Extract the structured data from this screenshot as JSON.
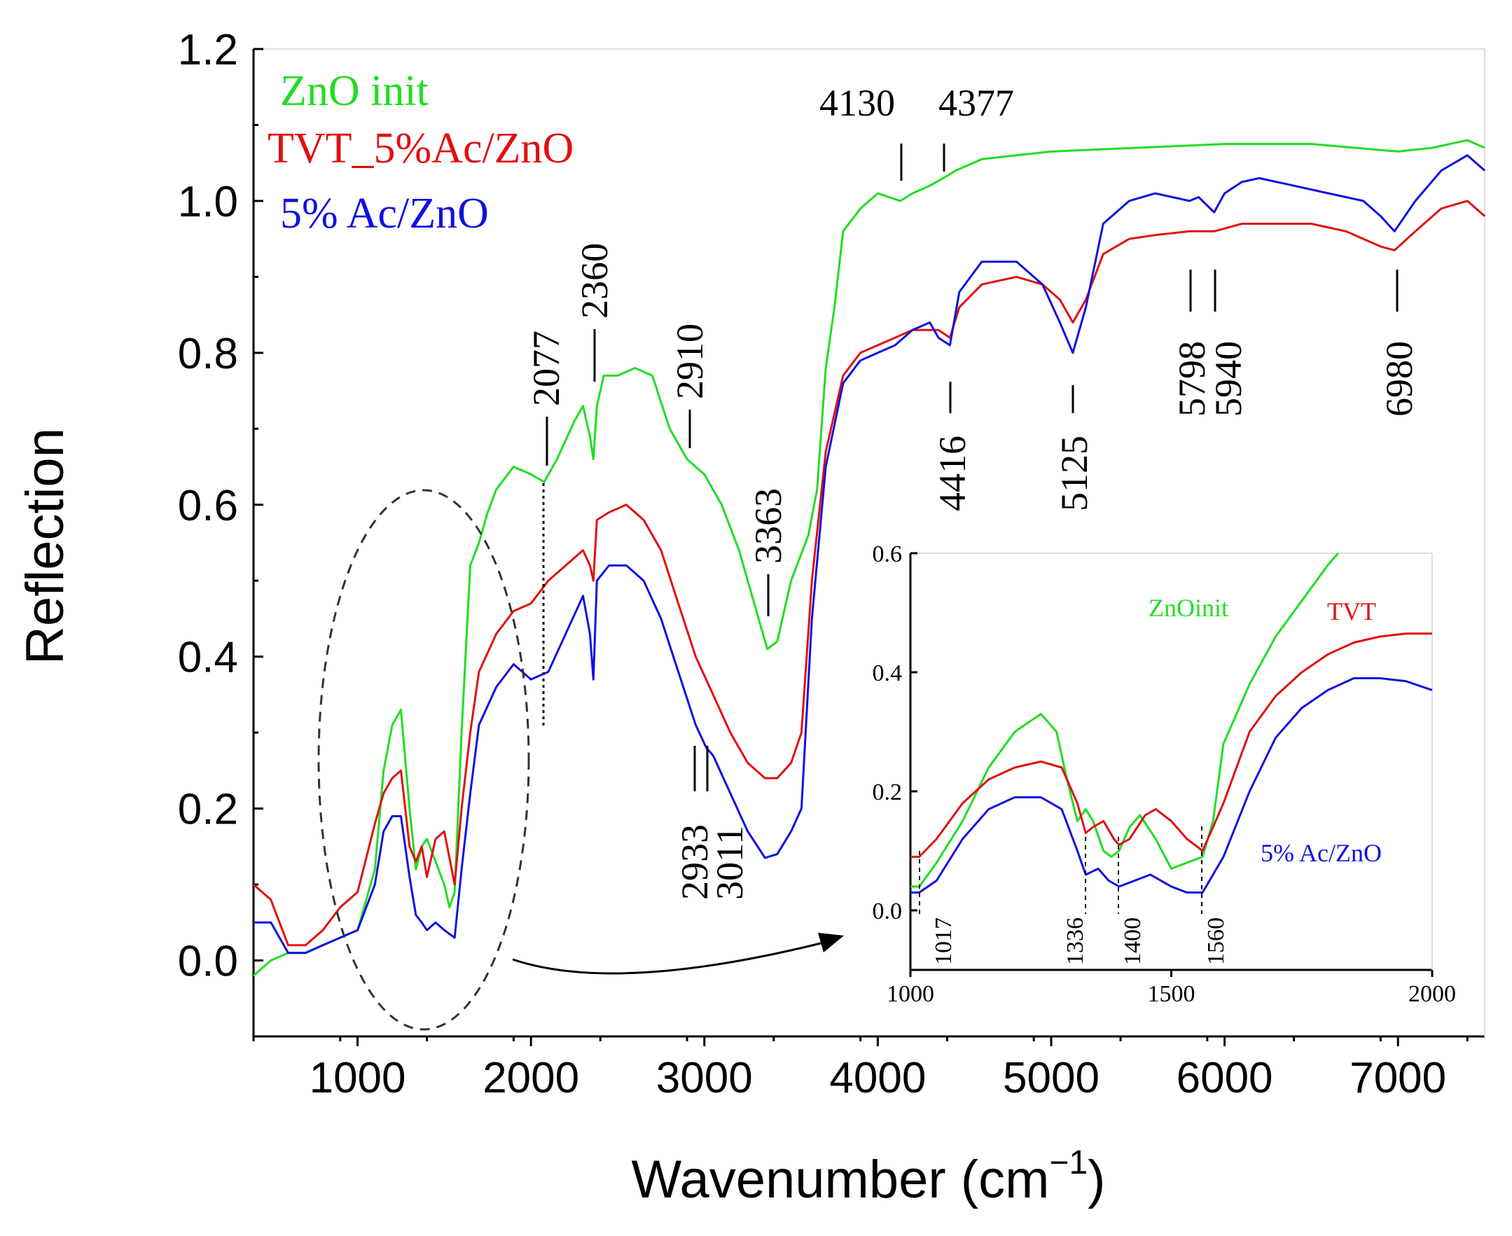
{
  "chart_data": [
    {
      "type": "line",
      "title": "",
      "xlabel": "Wavenumber (cm",
      "xlabel_sup": "−1",
      "xlabel_close": ")",
      "ylabel": "Reflection",
      "xlim": [
        400,
        7500
      ],
      "ylim": [
        -0.1,
        1.2
      ],
      "x_ticks": [
        1000,
        2000,
        3000,
        4000,
        5000,
        6000,
        7000
      ],
      "x_tick_labels": [
        "1000",
        "2000",
        "3000",
        "4000",
        "5000",
        "6000",
        "7000"
      ],
      "y_ticks": [
        0.0,
        0.2,
        0.4,
        0.6,
        0.8,
        1.0,
        1.2
      ],
      "y_tick_labels": [
        "0.0",
        "0.2",
        "0.4",
        "0.6",
        "0.8",
        "1.0",
        "1.2"
      ],
      "legend": [
        {
          "label": "ZnO init",
          "color": "#22dd22"
        },
        {
          "label": "TVT_5%Ac/ZnO",
          "color": "#e01010"
        },
        {
          "label": "5% Ac/ZnO",
          "color": "#1010e0"
        }
      ],
      "series": [
        {
          "name": "ZnO init",
          "color": "#22dd22",
          "x": [
            400,
            500,
            600,
            700,
            800,
            900,
            1000,
            1100,
            1150,
            1200,
            1250,
            1300,
            1336,
            1370,
            1400,
            1450,
            1500,
            1530,
            1560,
            1600,
            1650,
            1700,
            1750,
            1800,
            1900,
            2000,
            2077,
            2150,
            2250,
            2300,
            2340,
            2360,
            2380,
            2420,
            2500,
            2600,
            2700,
            2800,
            2900,
            3000,
            3100,
            3200,
            3300,
            3363,
            3420,
            3500,
            3600,
            3650,
            3700,
            3750,
            3800,
            3900,
            4000,
            4130,
            4200,
            4300,
            4377,
            4450,
            4600,
            4800,
            5000,
            5500,
            6000,
            6500,
            7000,
            7200,
            7400,
            7500
          ],
          "y": [
            -0.02,
            0.0,
            0.01,
            0.01,
            0.02,
            0.03,
            0.04,
            0.12,
            0.25,
            0.31,
            0.33,
            0.2,
            0.12,
            0.15,
            0.16,
            0.13,
            0.1,
            0.07,
            0.09,
            0.3,
            0.52,
            0.55,
            0.59,
            0.62,
            0.65,
            0.64,
            0.63,
            0.66,
            0.71,
            0.73,
            0.69,
            0.66,
            0.73,
            0.77,
            0.77,
            0.78,
            0.77,
            0.7,
            0.66,
            0.64,
            0.6,
            0.54,
            0.46,
            0.41,
            0.42,
            0.5,
            0.56,
            0.62,
            0.78,
            0.86,
            0.96,
            0.99,
            1.01,
            1.0,
            1.01,
            1.02,
            1.03,
            1.04,
            1.055,
            1.06,
            1.065,
            1.07,
            1.075,
            1.075,
            1.065,
            1.07,
            1.08,
            1.07
          ]
        },
        {
          "name": "TVT_5%Ac/ZnO",
          "color": "#e01010",
          "x": [
            400,
            500,
            600,
            700,
            800,
            900,
            1000,
            1100,
            1150,
            1200,
            1250,
            1300,
            1336,
            1370,
            1400,
            1450,
            1500,
            1560,
            1600,
            1650,
            1700,
            1800,
            1900,
            2000,
            2100,
            2200,
            2300,
            2340,
            2360,
            2380,
            2450,
            2550,
            2650,
            2750,
            2850,
            2950,
            3050,
            3150,
            3250,
            3350,
            3420,
            3500,
            3560,
            3620,
            3700,
            3800,
            3900,
            4000,
            4100,
            4200,
            4300,
            4350,
            4416,
            4470,
            4600,
            4800,
            4950,
            5050,
            5125,
            5200,
            5300,
            5450,
            5600,
            5798,
            5940,
            6100,
            6300,
            6500,
            6700,
            6900,
            6980,
            7100,
            7250,
            7400,
            7500
          ],
          "y": [
            0.1,
            0.08,
            0.02,
            0.02,
            0.04,
            0.07,
            0.09,
            0.18,
            0.22,
            0.24,
            0.25,
            0.15,
            0.13,
            0.15,
            0.11,
            0.16,
            0.17,
            0.1,
            0.2,
            0.3,
            0.38,
            0.43,
            0.46,
            0.47,
            0.5,
            0.52,
            0.54,
            0.52,
            0.5,
            0.58,
            0.59,
            0.6,
            0.58,
            0.54,
            0.47,
            0.4,
            0.35,
            0.3,
            0.26,
            0.24,
            0.24,
            0.26,
            0.3,
            0.5,
            0.67,
            0.77,
            0.8,
            0.81,
            0.82,
            0.83,
            0.83,
            0.83,
            0.82,
            0.86,
            0.89,
            0.9,
            0.89,
            0.87,
            0.84,
            0.87,
            0.93,
            0.95,
            0.955,
            0.96,
            0.96,
            0.97,
            0.97,
            0.97,
            0.96,
            0.94,
            0.935,
            0.96,
            0.99,
            1.0,
            0.98
          ]
        },
        {
          "name": "5% Ac/ZnO",
          "color": "#1010e0",
          "x": [
            400,
            500,
            600,
            700,
            800,
            900,
            1000,
            1100,
            1150,
            1200,
            1250,
            1300,
            1336,
            1370,
            1400,
            1450,
            1500,
            1560,
            1600,
            1650,
            1700,
            1800,
            1900,
            2000,
            2100,
            2200,
            2300,
            2340,
            2360,
            2380,
            2450,
            2550,
            2650,
            2750,
            2850,
            2950,
            3011,
            3050,
            3150,
            3250,
            3350,
            3420,
            3500,
            3560,
            3620,
            3700,
            3800,
            3900,
            4000,
            4100,
            4200,
            4300,
            4350,
            4416,
            4470,
            4600,
            4800,
            4950,
            5050,
            5125,
            5200,
            5300,
            5450,
            5600,
            5798,
            5850,
            5940,
            6000,
            6100,
            6200,
            6400,
            6600,
            6800,
            6900,
            6980,
            7100,
            7250,
            7400,
            7500
          ],
          "y": [
            0.05,
            0.05,
            0.01,
            0.01,
            0.02,
            0.03,
            0.04,
            0.1,
            0.17,
            0.19,
            0.19,
            0.11,
            0.06,
            0.05,
            0.04,
            0.05,
            0.04,
            0.03,
            0.12,
            0.22,
            0.31,
            0.36,
            0.39,
            0.37,
            0.38,
            0.43,
            0.48,
            0.43,
            0.37,
            0.5,
            0.52,
            0.52,
            0.5,
            0.45,
            0.38,
            0.31,
            0.28,
            0.27,
            0.22,
            0.17,
            0.135,
            0.14,
            0.17,
            0.2,
            0.45,
            0.65,
            0.76,
            0.79,
            0.8,
            0.81,
            0.83,
            0.84,
            0.82,
            0.81,
            0.88,
            0.92,
            0.92,
            0.89,
            0.84,
            0.8,
            0.86,
            0.97,
            1.0,
            1.01,
            1.0,
            1.005,
            0.985,
            1.01,
            1.025,
            1.03,
            1.02,
            1.01,
            1.0,
            0.98,
            0.96,
            1.0,
            1.04,
            1.06,
            1.04
          ]
        }
      ],
      "annotations": [
        {
          "label": "2077",
          "x": 2077
        },
        {
          "label": "2360",
          "x": 2360
        },
        {
          "label": "2910",
          "x": 2910
        },
        {
          "label": "3363",
          "x": 3363
        },
        {
          "label": "2933",
          "x": 2933
        },
        {
          "label": "3011",
          "x": 3011
        },
        {
          "label": "4130",
          "x": 4130
        },
        {
          "label": "4377",
          "x": 4377
        },
        {
          "label": "4416",
          "x": 4416
        },
        {
          "label": "5125",
          "x": 5125
        },
        {
          "label": "5798",
          "x": 5798
        },
        {
          "label": "5940",
          "x": 5940
        },
        {
          "label": "6980",
          "x": 6980
        }
      ]
    },
    {
      "type": "line",
      "title": "",
      "xlim": [
        1000,
        2000
      ],
      "ylim": [
        -0.1,
        0.6
      ],
      "x_ticks": [
        1000,
        1500,
        2000
      ],
      "x_tick_labels": [
        "1000",
        "1500",
        "2000"
      ],
      "y_ticks": [
        0.0,
        0.2,
        0.4,
        0.6
      ],
      "y_tick_labels": [
        "0.0",
        "0.2",
        "0.4",
        "0.6"
      ],
      "legend": [
        {
          "label": "ZnOinit",
          "color": "#22dd22"
        },
        {
          "label": "TVT",
          "color": "#e01010"
        },
        {
          "label": "5% Ac/ZnO",
          "color": "#1010e0"
        }
      ],
      "series": [
        {
          "name": "ZnOinit",
          "color": "#22dd22",
          "x": [
            1000,
            1017,
            1050,
            1100,
            1150,
            1200,
            1250,
            1280,
            1300,
            1320,
            1336,
            1350,
            1370,
            1385,
            1400,
            1420,
            1440,
            1470,
            1500,
            1530,
            1560,
            1580,
            1600,
            1650,
            1700,
            1750,
            1800,
            1820
          ],
          "y": [
            0.04,
            0.04,
            0.08,
            0.15,
            0.24,
            0.3,
            0.33,
            0.3,
            0.22,
            0.15,
            0.17,
            0.15,
            0.1,
            0.09,
            0.1,
            0.14,
            0.16,
            0.12,
            0.07,
            0.08,
            0.09,
            0.15,
            0.28,
            0.38,
            0.46,
            0.52,
            0.58,
            0.6
          ]
        },
        {
          "name": "TVT",
          "color": "#e01010",
          "x": [
            1000,
            1017,
            1050,
            1100,
            1150,
            1200,
            1250,
            1290,
            1320,
            1336,
            1350,
            1370,
            1390,
            1400,
            1420,
            1450,
            1470,
            1500,
            1530,
            1560,
            1600,
            1650,
            1700,
            1750,
            1800,
            1850,
            1900,
            1950,
            2000
          ],
          "y": [
            0.09,
            0.09,
            0.12,
            0.18,
            0.22,
            0.24,
            0.25,
            0.24,
            0.18,
            0.13,
            0.14,
            0.15,
            0.12,
            0.11,
            0.12,
            0.16,
            0.17,
            0.15,
            0.12,
            0.1,
            0.18,
            0.3,
            0.36,
            0.4,
            0.43,
            0.45,
            0.46,
            0.465,
            0.465
          ]
        },
        {
          "name": "5% Ac/ZnO",
          "color": "#1010e0",
          "x": [
            1000,
            1017,
            1050,
            1100,
            1150,
            1200,
            1250,
            1290,
            1320,
            1336,
            1360,
            1380,
            1400,
            1430,
            1460,
            1500,
            1530,
            1560,
            1600,
            1650,
            1700,
            1750,
            1800,
            1850,
            1900,
            1950,
            2000
          ],
          "y": [
            0.03,
            0.03,
            0.05,
            0.12,
            0.17,
            0.19,
            0.19,
            0.17,
            0.1,
            0.06,
            0.07,
            0.05,
            0.04,
            0.05,
            0.06,
            0.04,
            0.03,
            0.03,
            0.09,
            0.2,
            0.29,
            0.34,
            0.37,
            0.39,
            0.39,
            0.385,
            0.37
          ]
        }
      ],
      "annotations": [
        {
          "label": "1017",
          "x": 1017
        },
        {
          "label": "1336",
          "x": 1336
        },
        {
          "label": "1400",
          "x": 1400
        },
        {
          "label": "1560",
          "x": 1560
        }
      ]
    }
  ]
}
